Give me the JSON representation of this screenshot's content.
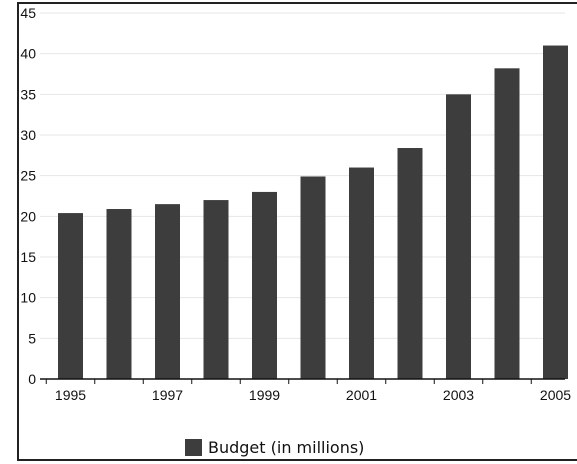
{
  "chart_data": {
    "type": "bar",
    "title": "",
    "xlabel": "",
    "ylabel": "",
    "x": [
      1995,
      1996,
      1997,
      1998,
      1999,
      2000,
      2001,
      2002,
      2003,
      2004,
      2005
    ],
    "x_tick_labels": [
      "1995",
      "1997",
      "1999",
      "2001",
      "2003",
      "2005"
    ],
    "series": [
      {
        "name": "Budget (in millions)",
        "color": "#3d3d3d",
        "values": [
          20.4,
          20.9,
          21.5,
          22,
          23,
          24.9,
          26,
          28.4,
          35,
          38.2,
          41
        ]
      }
    ],
    "y_ticks": [
      0,
      5,
      10,
      15,
      20,
      25,
      30,
      35,
      40,
      45
    ],
    "ylim": [
      0,
      45
    ],
    "grid": true,
    "legend_position": "bottom"
  }
}
